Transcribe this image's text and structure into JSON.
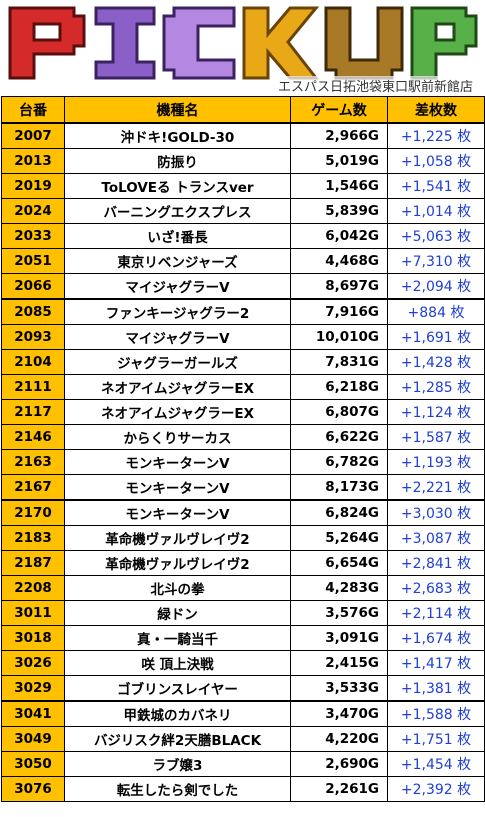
{
  "header": {
    "title": "PICKUP",
    "store": "エスパス日拓池袋東口駅前新館店",
    "colors": [
      "#d42a2a",
      "#8b5fc8",
      "#e8a818",
      "#a87a28",
      "#58b048"
    ]
  },
  "columns": [
    "台番",
    "機種名",
    "ゲーム数",
    "差枚数"
  ],
  "rows": [
    {
      "num": "2007",
      "name": "沖ドキ!GOLD-30",
      "games": "2,966G",
      "diff": "+1,225 枚"
    },
    {
      "num": "2013",
      "name": "防振り",
      "games": "5,019G",
      "diff": "+1,058 枚"
    },
    {
      "num": "2019",
      "name": "ToLOVEる トランスver",
      "games": "1,546G",
      "diff": "+1,541 枚"
    },
    {
      "num": "2024",
      "name": "バーニングエクスプレス",
      "games": "5,839G",
      "diff": "+1,014 枚"
    },
    {
      "num": "2033",
      "name": "いざ!番長",
      "games": "6,042G",
      "diff": "+5,063 枚"
    },
    {
      "num": "2051",
      "name": "東京リベンジャーズ",
      "games": "4,468G",
      "diff": "+7,310 枚"
    },
    {
      "num": "2066",
      "name": "マイジャグラーV",
      "games": "8,697G",
      "diff": "+2,094 枚"
    },
    {
      "num": "2085",
      "name": "ファンキージャグラー2",
      "games": "7,916G",
      "diff": "+884 枚"
    },
    {
      "num": "2093",
      "name": "マイジャグラーV",
      "games": "10,010G",
      "diff": "+1,691 枚"
    },
    {
      "num": "2104",
      "name": "ジャグラーガールズ",
      "games": "7,831G",
      "diff": "+1,428 枚"
    },
    {
      "num": "2111",
      "name": "ネオアイムジャグラーEX",
      "games": "6,218G",
      "diff": "+1,285 枚"
    },
    {
      "num": "2117",
      "name": "ネオアイムジャグラーEX",
      "games": "6,807G",
      "diff": "+1,124 枚"
    },
    {
      "num": "2146",
      "name": "からくりサーカス",
      "games": "6,622G",
      "diff": "+1,587 枚"
    },
    {
      "num": "2163",
      "name": "モンキーターンV",
      "games": "6,782G",
      "diff": "+1,193 枚"
    },
    {
      "num": "2167",
      "name": "モンキーターンV",
      "games": "8,173G",
      "diff": "+2,221 枚"
    },
    {
      "num": "2170",
      "name": "モンキーターンV",
      "games": "6,824G",
      "diff": "+3,030 枚"
    },
    {
      "num": "2183",
      "name": "革命機ヴァルヴレイヴ2",
      "games": "5,264G",
      "diff": "+3,087 枚"
    },
    {
      "num": "2187",
      "name": "革命機ヴァルヴレイヴ2",
      "games": "6,654G",
      "diff": "+2,841 枚"
    },
    {
      "num": "2208",
      "name": "北斗の拳",
      "games": "4,283G",
      "diff": "+2,683 枚"
    },
    {
      "num": "3011",
      "name": "緑ドン",
      "games": "3,576G",
      "diff": "+2,114 枚"
    },
    {
      "num": "3018",
      "name": "真・一騎当千",
      "games": "3,091G",
      "diff": "+1,674 枚"
    },
    {
      "num": "3026",
      "name": "咲 頂上決戦",
      "games": "2,415G",
      "diff": "+1,417 枚"
    },
    {
      "num": "3029",
      "name": "ゴブリンスレイヤー",
      "games": "3,533G",
      "diff": "+1,381 枚"
    },
    {
      "num": "3041",
      "name": "甲鉄城のカバネリ",
      "games": "3,470G",
      "diff": "+1,588 枚"
    },
    {
      "num": "3049",
      "name": "バジリスク絆2天膳BLACK",
      "games": "4,220G",
      "diff": "+1,751 枚"
    },
    {
      "num": "3050",
      "name": "ラブ嬢3",
      "games": "2,690G",
      "diff": "+1,454 枚"
    },
    {
      "num": "3076",
      "name": "転生したら剣でした",
      "games": "2,261G",
      "diff": "+2,392 枚"
    }
  ]
}
